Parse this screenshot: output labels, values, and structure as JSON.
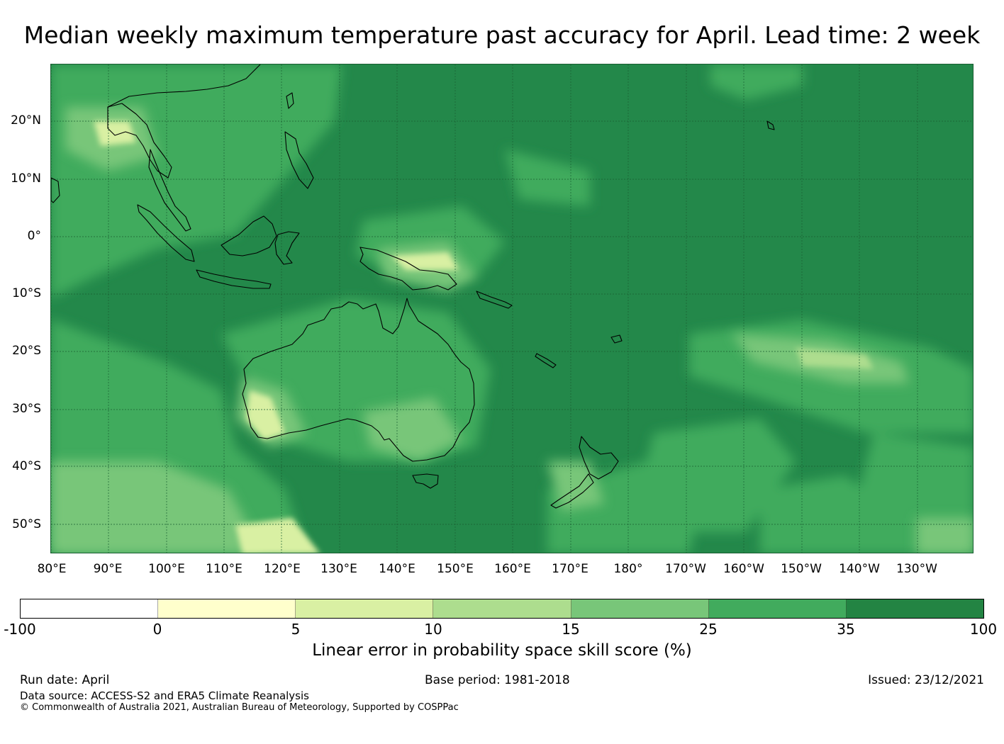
{
  "title": "Median weekly maximum temperature past accuracy for April. Lead time: 2 week",
  "map": {
    "region": "Pacific / Australia",
    "lat_labels": [
      "20°N",
      "10°N",
      "0°",
      "10°S",
      "20°S",
      "30°S",
      "40°S",
      "50°S"
    ],
    "lon_labels": [
      "80°E",
      "90°E",
      "100°E",
      "110°E",
      "120°E",
      "130°E",
      "140°E",
      "150°E",
      "160°E",
      "170°E",
      "180°",
      "170°W",
      "160°W",
      "150°W",
      "140°W",
      "130°W"
    ],
    "colors": {
      "dominant": "#23884a",
      "secondary": "#41ab5d",
      "coastline": "#000000",
      "gridline": "#1a5e32"
    }
  },
  "legend": {
    "label": "Linear error in probability space skill score (%)",
    "ticks": [
      "-100",
      "0",
      "5",
      "10",
      "15",
      "25",
      "35",
      "100"
    ],
    "colors": [
      "#ffffff",
      "#ffffcc",
      "#d9f0a3",
      "#addd8e",
      "#78c679",
      "#41ab5d",
      "#238443"
    ]
  },
  "footer": {
    "run_date": "Run date: April",
    "base_period": "Base period: 1981-2018",
    "issued": "Issued: 23/12/2021",
    "data_source": "Data source: ACCESS-S2 and ERA5 Climate Reanalysis",
    "copyright": "© Commonwealth of Australia 2021, Australian Bureau of Meteorology, Supported by COSPPac"
  }
}
